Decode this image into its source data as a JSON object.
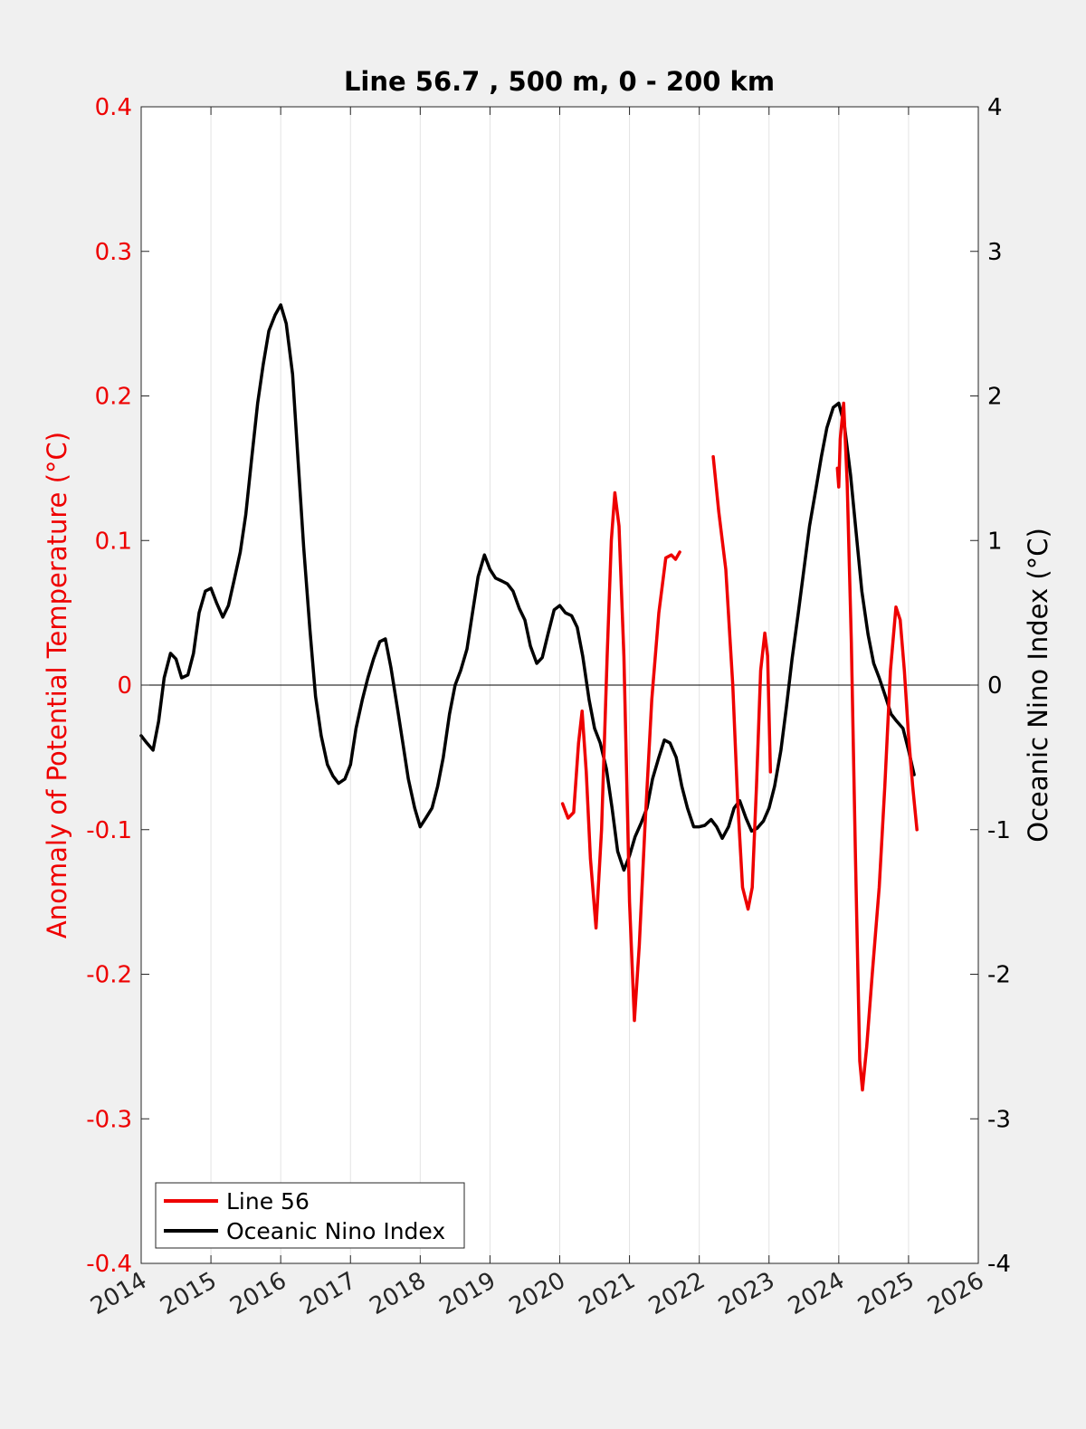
{
  "chart_data": {
    "type": "line",
    "title": "Line 56.7 , 500 m, 0 - 200 km",
    "xlabel": "",
    "ylabel_left": "Anomaly of Potential Temperature (°C)",
    "ylabel_right": "Oceanic Nino Index (°C)",
    "xlim": [
      2014,
      2026
    ],
    "ylim_left": [
      -0.4,
      0.4
    ],
    "ylim_right": [
      -4,
      4
    ],
    "x_ticks": [
      "2014",
      "2015",
      "2016",
      "2017",
      "2018",
      "2019",
      "2020",
      "2021",
      "2022",
      "2023",
      "2024",
      "2025",
      "2026"
    ],
    "y_ticks_left": [
      "0.4",
      "0.3",
      "0.2",
      "0.1",
      "0",
      "-0.1",
      "-0.2",
      "-0.3",
      "-0.4"
    ],
    "y_ticks_right": [
      "4",
      "3",
      "2",
      "1",
      "0",
      "-1",
      "-2",
      "-3",
      "-4"
    ],
    "grid": "vertical",
    "zero_line": true,
    "legend_position": "bottom-left",
    "colors": {
      "line56": "#ee0000",
      "oni": "#000000",
      "left_axis": "#ee0000",
      "right_axis": "#000000"
    },
    "series": [
      {
        "name": "Line 56",
        "axis": "left",
        "segments": [
          [
            [
              2020.04,
              -0.082
            ],
            [
              2020.12,
              -0.092
            ],
            [
              2020.2,
              -0.088
            ],
            [
              2020.27,
              -0.04
            ],
            [
              2020.32,
              -0.018
            ],
            [
              2020.38,
              -0.06
            ],
            [
              2020.44,
              -0.12
            ],
            [
              2020.52,
              -0.168
            ],
            [
              2020.6,
              -0.1
            ],
            [
              2020.68,
              0.02
            ],
            [
              2020.74,
              0.1
            ],
            [
              2020.79,
              0.133
            ],
            [
              2020.85,
              0.11
            ],
            [
              2020.92,
              0.02
            ],
            [
              2021.0,
              -0.15
            ],
            [
              2021.07,
              -0.232
            ],
            [
              2021.14,
              -0.18
            ],
            [
              2021.22,
              -0.1
            ],
            [
              2021.32,
              -0.01
            ],
            [
              2021.42,
              0.05
            ],
            [
              2021.52,
              0.088
            ],
            [
              2021.6,
              0.09
            ],
            [
              2021.66,
              0.087
            ],
            [
              2021.72,
              0.092
            ]
          ],
          [
            [
              2022.2,
              0.158
            ],
            [
              2022.28,
              0.12
            ],
            [
              2022.38,
              0.08
            ],
            [
              2022.48,
              0.0
            ],
            [
              2022.55,
              -0.08
            ],
            [
              2022.62,
              -0.14
            ],
            [
              2022.7,
              -0.155
            ],
            [
              2022.76,
              -0.14
            ],
            [
              2022.82,
              -0.07
            ],
            [
              2022.88,
              0.01
            ],
            [
              2022.94,
              0.036
            ],
            [
              2022.98,
              0.02
            ],
            [
              2023.02,
              -0.06
            ]
          ],
          [
            [
              2023.98,
              0.15
            ],
            [
              2024.0,
              0.137
            ],
            [
              2024.02,
              0.17
            ],
            [
              2024.07,
              0.195
            ],
            [
              2024.12,
              0.14
            ],
            [
              2024.18,
              0.03
            ],
            [
              2024.24,
              -0.12
            ],
            [
              2024.3,
              -0.26
            ],
            [
              2024.34,
              -0.28
            ],
            [
              2024.4,
              -0.25
            ],
            [
              2024.48,
              -0.2
            ],
            [
              2024.58,
              -0.14
            ],
            [
              2024.66,
              -0.07
            ],
            [
              2024.74,
              0.01
            ],
            [
              2024.82,
              0.054
            ],
            [
              2024.88,
              0.045
            ],
            [
              2024.94,
              0.01
            ],
            [
              2025.0,
              -0.035
            ],
            [
              2025.06,
              -0.07
            ],
            [
              2025.12,
              -0.1
            ]
          ]
        ]
      },
      {
        "name": "Oceanic Nino Index",
        "axis": "right",
        "x": [
          2014.0,
          2014.08,
          2014.17,
          2014.25,
          2014.33,
          2014.42,
          2014.5,
          2014.58,
          2014.67,
          2014.75,
          2014.83,
          2014.92,
          2015.0,
          2015.08,
          2015.17,
          2015.25,
          2015.33,
          2015.42,
          2015.5,
          2015.58,
          2015.67,
          2015.75,
          2015.83,
          2015.92,
          2016.0,
          2016.08,
          2016.17,
          2016.25,
          2016.33,
          2016.42,
          2016.5,
          2016.58,
          2016.67,
          2016.75,
          2016.83,
          2016.92,
          2017.0,
          2017.08,
          2017.17,
          2017.25,
          2017.33,
          2017.42,
          2017.5,
          2017.58,
          2017.67,
          2017.75,
          2017.83,
          2017.92,
          2018.0,
          2018.08,
          2018.17,
          2018.25,
          2018.33,
          2018.42,
          2018.5,
          2018.58,
          2018.67,
          2018.75,
          2018.83,
          2018.92,
          2019.0,
          2019.08,
          2019.17,
          2019.25,
          2019.33,
          2019.42,
          2019.5,
          2019.58,
          2019.67,
          2019.75,
          2019.83,
          2019.92,
          2020.0,
          2020.08,
          2020.17,
          2020.25,
          2020.33,
          2020.42,
          2020.5,
          2020.58,
          2020.67,
          2020.75,
          2020.83,
          2020.92,
          2021.0,
          2021.08,
          2021.17,
          2021.25,
          2021.33,
          2021.42,
          2021.5,
          2021.58,
          2021.67,
          2021.75,
          2021.83,
          2021.92,
          2022.0,
          2022.08,
          2022.17,
          2022.25,
          2022.33,
          2022.42,
          2022.5,
          2022.58,
          2022.67,
          2022.75,
          2022.83,
          2022.92,
          2023.0,
          2023.08,
          2023.17,
          2023.25,
          2023.33,
          2023.42,
          2023.5,
          2023.58,
          2023.67,
          2023.75,
          2023.83,
          2023.92,
          2024.0,
          2024.08,
          2024.17,
          2024.25,
          2024.33,
          2024.42,
          2024.5,
          2024.58,
          2024.67,
          2024.75,
          2024.83,
          2024.92,
          2025.0,
          2025.08
        ],
        "values": [
          -0.35,
          -0.4,
          -0.45,
          -0.25,
          0.05,
          0.22,
          0.18,
          0.05,
          0.07,
          0.22,
          0.5,
          0.65,
          0.67,
          0.57,
          0.47,
          0.55,
          0.72,
          0.92,
          1.18,
          1.55,
          1.95,
          2.22,
          2.45,
          2.56,
          2.63,
          2.5,
          2.15,
          1.55,
          0.95,
          0.38,
          -0.08,
          -0.35,
          -0.55,
          -0.63,
          -0.68,
          -0.65,
          -0.55,
          -0.3,
          -0.1,
          0.05,
          0.18,
          0.3,
          0.32,
          0.12,
          -0.15,
          -0.4,
          -0.65,
          -0.85,
          -0.98,
          -0.92,
          -0.85,
          -0.7,
          -0.5,
          -0.2,
          0.0,
          0.1,
          0.25,
          0.5,
          0.75,
          0.9,
          0.8,
          0.74,
          0.72,
          0.7,
          0.65,
          0.53,
          0.45,
          0.27,
          0.15,
          0.19,
          0.35,
          0.52,
          0.55,
          0.5,
          0.48,
          0.4,
          0.2,
          -0.1,
          -0.3,
          -0.4,
          -0.58,
          -0.85,
          -1.15,
          -1.28,
          -1.18,
          -1.05,
          -0.95,
          -0.85,
          -0.65,
          -0.5,
          -0.38,
          -0.4,
          -0.5,
          -0.7,
          -0.85,
          -0.98,
          -0.98,
          -0.97,
          -0.93,
          -0.98,
          -1.06,
          -0.98,
          -0.85,
          -0.8,
          -0.92,
          -1.01,
          -0.99,
          -0.94,
          -0.85,
          -0.7,
          -0.45,
          -0.15,
          0.18,
          0.5,
          0.8,
          1.1,
          1.35,
          1.58,
          1.78,
          1.92,
          1.95,
          1.8,
          1.45,
          1.05,
          0.65,
          0.35,
          0.15,
          0.05,
          -0.08,
          -0.2,
          -0.25,
          -0.3,
          -0.45,
          -0.62
        ]
      }
    ]
  }
}
